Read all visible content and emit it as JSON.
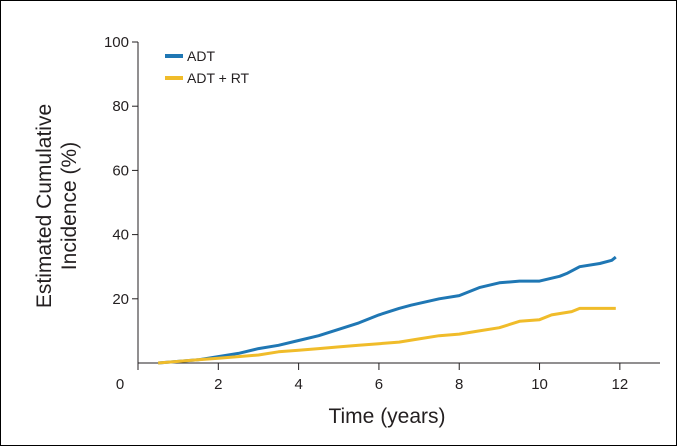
{
  "chart_data": {
    "type": "line",
    "title": "",
    "xlabel": "Time (years)",
    "ylabel_lines": [
      "Estimated Cumulative",
      "Incidence (%)"
    ],
    "xlim": [
      0,
      13
    ],
    "ylim": [
      0,
      100
    ],
    "x_ticks": [
      0,
      2,
      4,
      6,
      8,
      10,
      12
    ],
    "x_tick_labels": [
      "0",
      "2",
      "4",
      "6",
      "8",
      "10",
      "12"
    ],
    "y_ticks": [
      20,
      40,
      60,
      80,
      100
    ],
    "y_tick_labels": [
      "20",
      "40",
      "60",
      "80",
      "100"
    ],
    "grid": false,
    "legend_position": "top-left",
    "series": [
      {
        "name": "ADT",
        "color": "#1f77b4",
        "x": [
          0.5,
          1.0,
          1.5,
          2.0,
          2.5,
          3.0,
          3.5,
          4.0,
          4.5,
          5.0,
          5.5,
          6.0,
          6.5,
          6.8,
          7.5,
          8.0,
          8.5,
          9.0,
          9.5,
          10.0,
          10.5,
          10.7,
          11.0,
          11.5,
          11.8,
          11.9
        ],
        "y": [
          0,
          0.5,
          1,
          2,
          3,
          4.5,
          5.5,
          7,
          8.5,
          10.5,
          12.5,
          15,
          17,
          18,
          20,
          21,
          23.5,
          25,
          25.5,
          25.5,
          27,
          28,
          30,
          31,
          32,
          33
        ]
      },
      {
        "name": "ADT + RT",
        "color": "#f0bc2a",
        "x": [
          0.5,
          1.0,
          1.5,
          2.0,
          2.5,
          3.0,
          3.5,
          4.0,
          4.5,
          5.0,
          5.5,
          6.0,
          6.5,
          7.0,
          7.5,
          8.0,
          8.5,
          9.0,
          9.5,
          10.0,
          10.3,
          10.8,
          11.0,
          11.5,
          11.9
        ],
        "y": [
          0,
          0.5,
          1,
          1.5,
          2,
          2.5,
          3.5,
          4,
          4.5,
          5,
          5.5,
          6,
          6.5,
          7.5,
          8.5,
          9,
          10,
          11,
          13,
          13.5,
          15,
          16,
          17,
          17,
          17
        ]
      }
    ]
  }
}
